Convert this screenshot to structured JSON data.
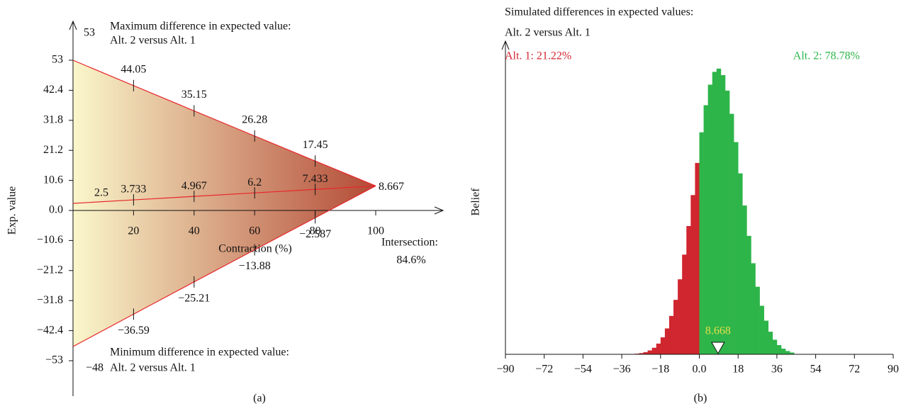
{
  "chart_data": [
    {
      "type": "contraction",
      "caption": "(a)",
      "xlabel": "Contraction (%)",
      "ylabel": "Exp. value",
      "xlim": [
        0,
        100
      ],
      "ylim": [
        -53,
        53
      ],
      "xticks": [
        20,
        40,
        60,
        80,
        100
      ],
      "yticks": [
        53,
        42.4,
        31.8,
        21.2,
        10.6,
        {
          "value": 0,
          "label": "0.0"
        },
        {
          "value": -10.6,
          "label": "−10.6"
        },
        {
          "value": -21.2,
          "label": "−21.2"
        },
        {
          "value": -31.8,
          "label": "−31.8"
        },
        {
          "value": -42.4,
          "label": "−42.4"
        },
        {
          "value": -53,
          "label": "−53"
        }
      ],
      "annotations": [
        "Maximum difference in expected value:",
        "Alt. 2 versus Alt. 1",
        "Minimum difference in expected value:",
        "Alt. 2 versus Alt. 1",
        "Intersection:",
        "84.6%"
      ],
      "gradient": [
        "#faf7cb",
        "#b34a36"
      ],
      "x": [
        0,
        20,
        40,
        60,
        80,
        100
      ],
      "series": [
        {
          "color": "#e8262b",
          "values": [
            53,
            44.05,
            35.15,
            26.28,
            17.45,
            8.667
          ],
          "value_labels": [
            "53",
            "44.05",
            "35.15",
            "26.28",
            "17.45",
            null
          ]
        },
        {
          "color": "#e8262b",
          "values": [
            2.5,
            3.733,
            4.967,
            6.2,
            7.433,
            8.667
          ],
          "value_labels": [
            "2.5",
            "3.733",
            "4.967",
            "6.2",
            "7.433",
            "8.667"
          ]
        },
        {
          "color": "#e8262b",
          "values": [
            -48,
            -36.59,
            -25.21,
            -13.88,
            -2.587,
            8.667
          ],
          "value_labels": [
            "−48",
            "−36.59",
            "−25.21",
            "−13.88",
            "−2.587",
            null
          ]
        }
      ]
    },
    {
      "type": "histogram",
      "caption": "(b)",
      "title": "Simulated differences in expected values:",
      "subtitle": "Alt. 2 versus Alt. 1",
      "ylabel": "Belief",
      "xlim": [
        -90,
        90
      ],
      "ylim": [
        0,
        100
      ],
      "xticks": [
        {
          "value": -90,
          "label": "−90"
        },
        {
          "value": -72,
          "label": "−72"
        },
        {
          "value": -54,
          "label": "−54"
        },
        {
          "value": -36,
          "label": "−36"
        },
        {
          "value": -18,
          "label": "−18"
        },
        {
          "value": 0,
          "label": "0.0"
        },
        18,
        36,
        54,
        72,
        90
      ],
      "bins": [
        -30,
        -28,
        -26,
        -24,
        -22,
        -20,
        -18,
        -16,
        -14,
        -12,
        -10,
        -8,
        -6,
        -4,
        -2,
        0,
        2,
        4,
        6,
        8,
        10,
        12,
        14,
        16,
        18,
        20,
        22,
        24,
        26,
        28,
        30,
        32,
        34,
        36,
        38,
        40,
        42,
        44
      ],
      "counts": [
        0.2,
        0.4,
        0.7,
        1.3,
        2.2,
        3.6,
        5.7,
        8.7,
        12.9,
        18.3,
        25.2,
        33.5,
        43.1,
        53.5,
        64.3,
        74.6,
        83.7,
        90.6,
        94.9,
        96,
        93.8,
        88.6,
        80.8,
        71.3,
        60.8,
        50.0,
        39.8,
        30.6,
        22.7,
        16.3,
        11.3,
        7.6,
        4.9,
        3.1,
        1.9,
        1.1,
        0.6
      ],
      "negative_color": "#d0262f",
      "positive_color": "#2eb54a",
      "annotations": [
        {
          "text": "Alt. 1: 21.22%",
          "color": "#d0262f"
        },
        {
          "text": "Alt. 2: 78.78%",
          "color": "#2eb54a"
        }
      ],
      "marker": {
        "value": 8.668,
        "color": "#e6dd4a"
      }
    }
  ]
}
